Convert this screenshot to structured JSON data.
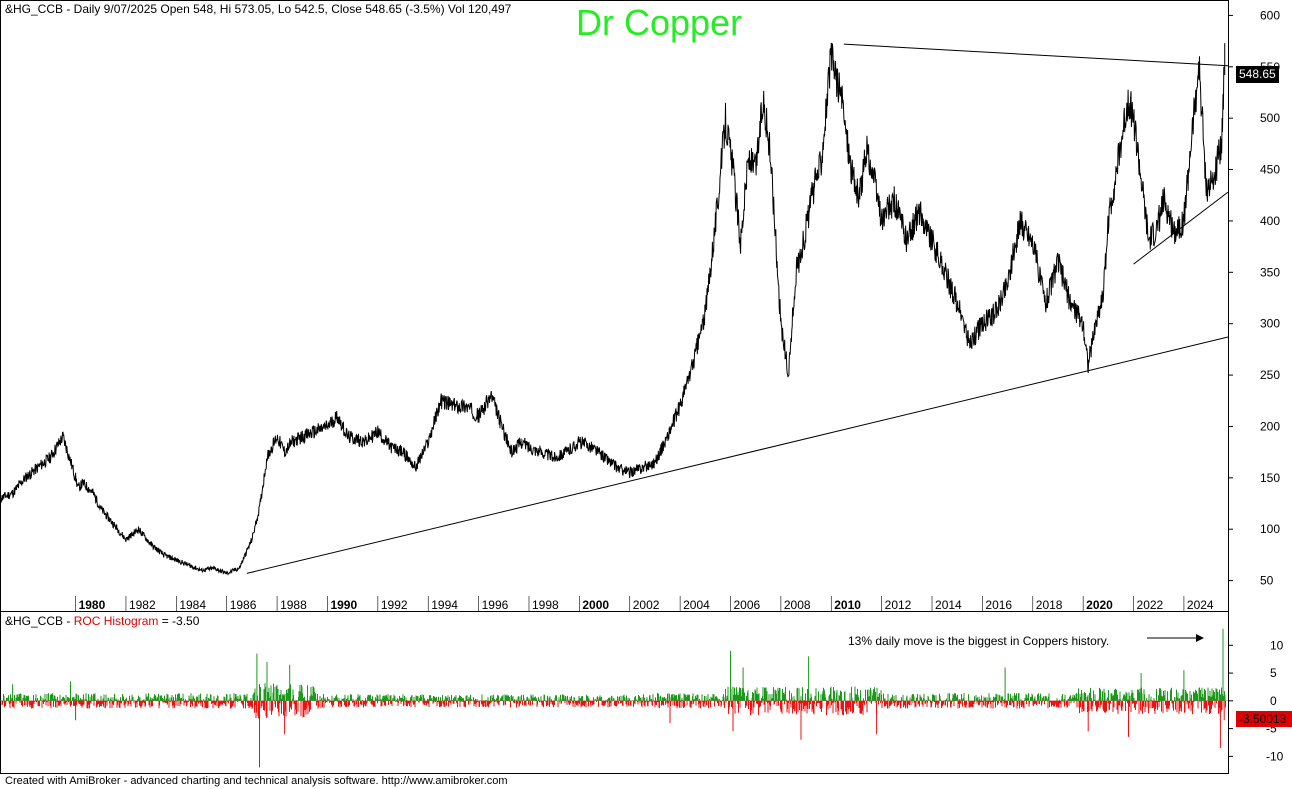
{
  "header": {
    "price": "&HG_CCB - Daily 9/07/2025 Open 548, Hi 573.05, Lo 542.5, Close 548.65 (-3.5%) Vol 120,497",
    "roc_prefix": "&HG_CCB - ",
    "roc_name": "ROC Histogram",
    "roc_value": " = -3.50"
  },
  "title": "Dr Copper",
  "annotation": "13% daily move is the biggest in Coppers history.",
  "footer": "Created with AmiBroker - advanced charting and technical analysis software. http://www.amibroker.com",
  "last_price_label": "548.65",
  "last_roc_label": "-3.50013",
  "colors": {
    "price": "#000000",
    "roc_up": "#1a9a1a",
    "roc_down": "#ee1111",
    "title": "#22ee22"
  },
  "chart_data": [
    {
      "type": "line",
      "title": "Dr Copper",
      "series_label": "&HG_CCB Daily",
      "xlim": [
        1977.0,
        2025.75
      ],
      "ylim": [
        35,
        615
      ],
      "y_ticks": [
        50,
        100,
        150,
        200,
        250,
        300,
        350,
        400,
        450,
        500,
        550,
        600
      ],
      "x_ticks": [
        {
          "label": "1980",
          "value": 1980,
          "bold": true
        },
        {
          "label": "1982",
          "value": 1982
        },
        {
          "label": "1984",
          "value": 1984
        },
        {
          "label": "1986",
          "value": 1986
        },
        {
          "label": "1988",
          "value": 1988
        },
        {
          "label": "1990",
          "value": 1990,
          "bold": true
        },
        {
          "label": "1992",
          "value": 1992
        },
        {
          "label": "1994",
          "value": 1994
        },
        {
          "label": "1996",
          "value": 1996
        },
        {
          "label": "1998",
          "value": 1998
        },
        {
          "label": "2000",
          "value": 2000,
          "bold": true
        },
        {
          "label": "2002",
          "value": 2002
        },
        {
          "label": "2004",
          "value": 2004
        },
        {
          "label": "2006",
          "value": 2006
        },
        {
          "label": "2008",
          "value": 2008
        },
        {
          "label": "2010",
          "value": 2010,
          "bold": true
        },
        {
          "label": "2012",
          "value": 2012
        },
        {
          "label": "2014",
          "value": 2014
        },
        {
          "label": "2016",
          "value": 2016
        },
        {
          "label": "2018",
          "value": 2018
        },
        {
          "label": "2020",
          "value": 2020,
          "bold": true
        },
        {
          "label": "2022",
          "value": 2022
        },
        {
          "label": "2024",
          "value": 2024
        }
      ],
      "x": [
        1977.0,
        1977.5,
        1978.0,
        1978.5,
        1979.0,
        1979.5,
        1980.0,
        1980.1,
        1980.3,
        1980.7,
        1981.0,
        1981.5,
        1982.0,
        1982.5,
        1983.0,
        1983.5,
        1984.0,
        1984.5,
        1985.0,
        1985.5,
        1986.0,
        1986.5,
        1987.0,
        1987.3,
        1987.6,
        1988.0,
        1988.3,
        1988.6,
        1989.0,
        1989.5,
        1990.0,
        1990.4,
        1990.8,
        1991.5,
        1992.0,
        1992.5,
        1993.0,
        1993.5,
        1994.0,
        1994.5,
        1995.0,
        1995.5,
        1996.0,
        1996.5,
        1997.0,
        1997.3,
        1997.7,
        1998.0,
        1998.5,
        1999.0,
        1999.5,
        2000.0,
        2000.5,
        2001.0,
        2001.5,
        2002.0,
        2002.5,
        2003.0,
        2003.5,
        2004.0,
        2004.5,
        2005.0,
        2005.5,
        2005.8,
        2006.1,
        2006.4,
        2006.7,
        2007.0,
        2007.3,
        2007.6,
        2008.0,
        2008.3,
        2008.6,
        2008.9,
        2009.2,
        2009.6,
        2010.0,
        2010.4,
        2010.8,
        2011.1,
        2011.4,
        2011.7,
        2012.0,
        2012.5,
        2013.0,
        2013.5,
        2014.0,
        2014.5,
        2015.0,
        2015.5,
        2016.0,
        2016.5,
        2017.0,
        2017.5,
        2018.0,
        2018.5,
        2019.0,
        2019.5,
        2020.0,
        2020.2,
        2020.5,
        2020.8,
        2021.0,
        2021.4,
        2021.8,
        2022.0,
        2022.3,
        2022.6,
        2022.9,
        2023.2,
        2023.6,
        2024.0,
        2024.3,
        2024.6,
        2024.9,
        2025.2,
        2025.5,
        2025.6
      ],
      "y": [
        130,
        135,
        150,
        160,
        170,
        190,
        150,
        140,
        145,
        135,
        120,
        105,
        90,
        100,
        85,
        75,
        70,
        65,
        60,
        62,
        57,
        62,
        90,
        120,
        170,
        190,
        175,
        185,
        190,
        195,
        200,
        210,
        190,
        185,
        195,
        180,
        175,
        160,
        185,
        225,
        220,
        220,
        210,
        230,
        195,
        175,
        185,
        180,
        175,
        170,
        175,
        185,
        180,
        170,
        160,
        155,
        160,
        165,
        190,
        220,
        260,
        310,
        420,
        500,
        450,
        380,
        460,
        450,
        520,
        460,
        300,
        250,
        350,
        380,
        420,
        460,
        560,
        520,
        450,
        420,
        470,
        440,
        400,
        420,
        380,
        410,
        380,
        350,
        320,
        280,
        300,
        310,
        340,
        400,
        380,
        320,
        360,
        320,
        300,
        260,
        300,
        330,
        400,
        460,
        520,
        500,
        440,
        380,
        390,
        420,
        390,
        400,
        480,
        550,
        430,
        440,
        480,
        548.65
      ],
      "trendlines": [
        {
          "x1": 1986.8,
          "y1": 57,
          "x2": 2025.75,
          "y2": 287
        },
        {
          "x1": 2010.5,
          "y1": 572,
          "x2": 2025.75,
          "y2": 551
        },
        {
          "x1": 2022.0,
          "y1": 358,
          "x2": 2025.75,
          "y2": 428
        }
      ]
    },
    {
      "type": "bar",
      "title": "ROC Histogram",
      "series_label": "&HG_CCB",
      "xlim": [
        1977.0,
        2025.75
      ],
      "ylim": [
        -13,
        16
      ],
      "y_ticks": [
        -10,
        -5,
        0,
        5,
        10
      ],
      "last_value": -3.50013,
      "notable": [
        {
          "x": 1977.5,
          "y": 3.0
        },
        {
          "x": 1979.8,
          "y": 3.5
        },
        {
          "x": 1980.0,
          "y": -3.5
        },
        {
          "x": 1987.2,
          "y": 8.5
        },
        {
          "x": 1987.3,
          "y": -12.0
        },
        {
          "x": 1987.6,
          "y": 7.0
        },
        {
          "x": 1988.3,
          "y": -6.0
        },
        {
          "x": 1988.5,
          "y": 6.5
        },
        {
          "x": 2003.6,
          "y": -4.0
        },
        {
          "x": 2006.0,
          "y": 9.0
        },
        {
          "x": 2006.1,
          "y": -5.5
        },
        {
          "x": 2006.5,
          "y": 6.0
        },
        {
          "x": 2008.8,
          "y": -7.0
        },
        {
          "x": 2009.1,
          "y": 8.0
        },
        {
          "x": 2011.8,
          "y": -6.0
        },
        {
          "x": 2016.9,
          "y": 6.0
        },
        {
          "x": 2020.2,
          "y": -5.5
        },
        {
          "x": 2021.8,
          "y": -6.5
        },
        {
          "x": 2022.3,
          "y": 5.0
        },
        {
          "x": 2024.0,
          "y": 5.5
        },
        {
          "x": 2025.45,
          "y": -8.5
        },
        {
          "x": 2025.55,
          "y": 13.0
        },
        {
          "x": 2025.6,
          "y": -3.5
        }
      ]
    }
  ]
}
